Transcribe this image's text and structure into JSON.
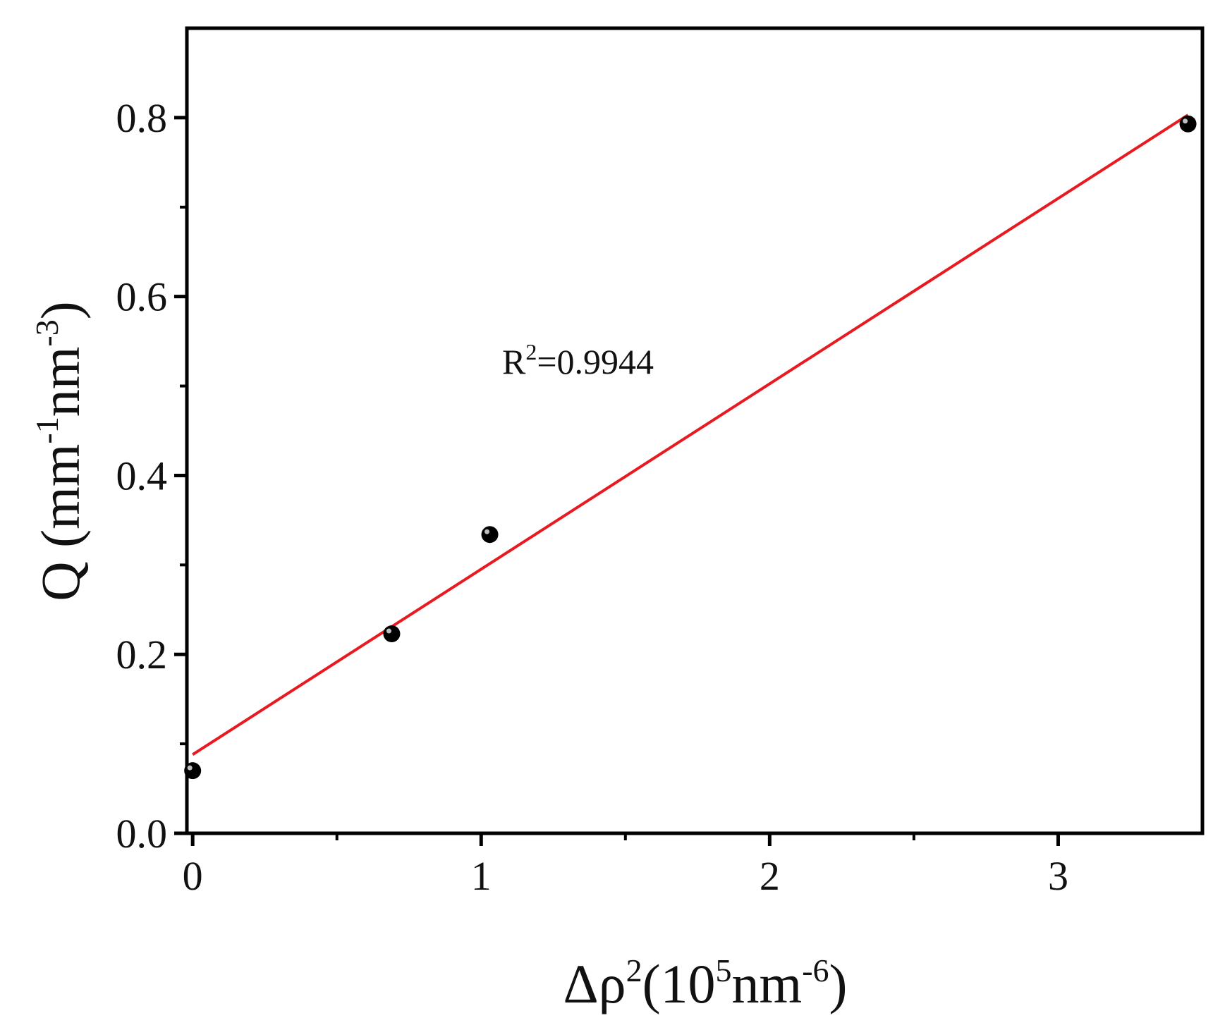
{
  "chart_data": {
    "type": "scatter",
    "title": "",
    "xlabel": {
      "base": "Δρ",
      "sup1": "2",
      "mid": "(10",
      "sup2": "5",
      "unit": "nm",
      "sup3": "-6",
      "close": ")"
    },
    "ylabel": {
      "base": "Q (mm",
      "sup1": "-1",
      "mid": "nm",
      "sup2": "-3",
      "close": ")"
    },
    "xlim": [
      -0.02,
      3.5
    ],
    "ylim": [
      0.0,
      0.9
    ],
    "xticks": [
      0,
      1,
      2,
      3
    ],
    "xtick_labels": [
      "0",
      "1",
      "2",
      "3"
    ],
    "xminor_ticks": [
      0.5,
      1.5,
      2.5
    ],
    "yticks": [
      0.0,
      0.2,
      0.4,
      0.6,
      0.8
    ],
    "ytick_labels": [
      "0.0",
      "0.2",
      "0.4",
      "0.6",
      "0.8"
    ],
    "yminor_ticks": [
      0.1,
      0.3,
      0.5,
      0.7
    ],
    "grid": false,
    "points": {
      "x": [
        0.0,
        0.69,
        1.03,
        3.45
      ],
      "y": [
        0.07,
        0.223,
        0.334,
        0.793
      ],
      "color": "#000000"
    },
    "fit_line": {
      "x": [
        0.0,
        3.45
      ],
      "y": [
        0.088,
        0.803
      ],
      "color": "#e8191f"
    },
    "annotation": {
      "base": "R",
      "sup": "2",
      "rest": "=0.9944",
      "x": 1.03,
      "y": 0.52
    }
  }
}
